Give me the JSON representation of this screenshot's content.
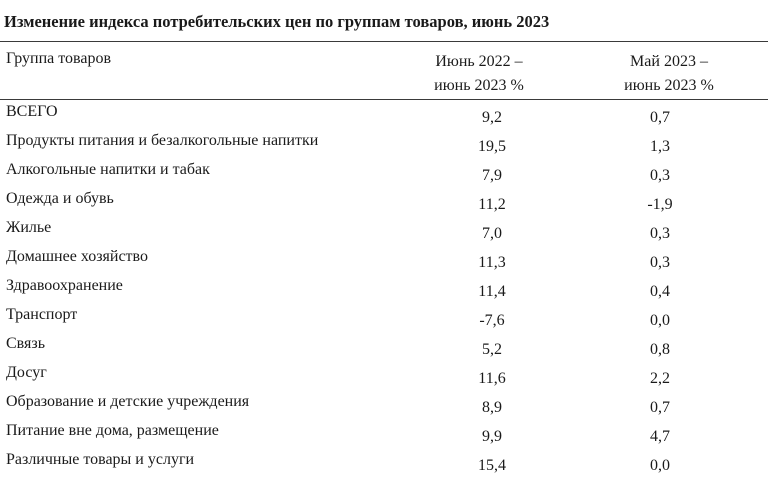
{
  "title": "Изменение индекса потребительских цен по группам товаров, июнь 2023",
  "header": {
    "group": "Группа товаров",
    "col1_line1": "Июнь 2022 –",
    "col1_line2": "июнь 2023 %",
    "col2_line1": "Май 2023 –",
    "col2_line2": "июнь 2023 %"
  },
  "rows": [
    {
      "name": "ВСЕГО",
      "v1": "9,2",
      "v2": "0,7"
    },
    {
      "name": "Продукты питания и безалкогольные напитки",
      "v1": "19,5",
      "v2": "1,3"
    },
    {
      "name": "Алкогольные напитки и табак",
      "v1": "7,9",
      "v2": "0,3"
    },
    {
      "name": "Одежда и обувь",
      "v1": "11,2",
      "v2": "-1,9"
    },
    {
      "name": "Жилье",
      "v1": "7,0",
      "v2": "0,3"
    },
    {
      "name": "Домашнее хозяйство",
      "v1": "11,3",
      "v2": "0,3"
    },
    {
      "name": "Здравоохранение",
      "v1": "11,4",
      "v2": "0,4"
    },
    {
      "name": "Транспорт",
      "v1": "-7,6",
      "v2": "0,0"
    },
    {
      "name": "Связь",
      "v1": "5,2",
      "v2": "0,8"
    },
    {
      "name": "Досуг",
      "v1": "11,6",
      "v2": "2,2"
    },
    {
      "name": "Образование и детские учреждения",
      "v1": "8,9",
      "v2": "0,7"
    },
    {
      "name": "Питание вне дома, размещение",
      "v1": "9,9",
      "v2": "4,7"
    },
    {
      "name": "Различные товары и услуги",
      "v1": "15,4",
      "v2": "0,0"
    }
  ]
}
